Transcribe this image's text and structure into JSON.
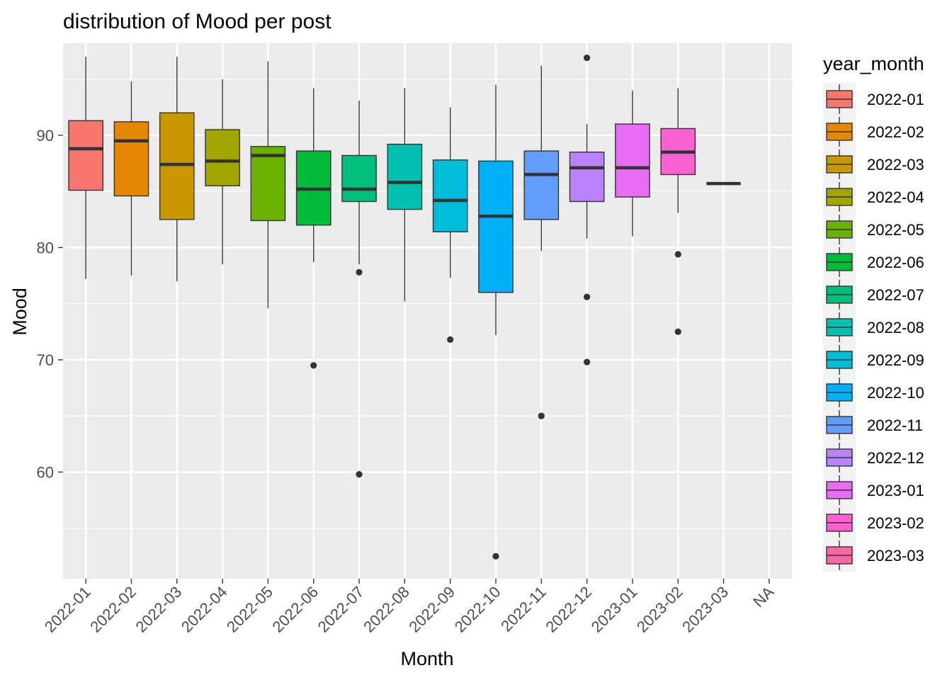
{
  "chart_data": {
    "type": "boxplot",
    "title": "distribution of Mood per post",
    "xlabel": "Month",
    "ylabel": "Mood",
    "ylim": [
      50.5,
      98.2
    ],
    "yticks": [
      60,
      70,
      80,
      90
    ],
    "grid": true,
    "legend": {
      "title": "year_month",
      "placement": "right",
      "entries": [
        "2022-01",
        "2022-02",
        "2022-03",
        "2022-04",
        "2022-05",
        "2022-06",
        "2022-07",
        "2022-08",
        "2022-09",
        "2022-10",
        "2022-11",
        "2022-12",
        "2023-01",
        "2023-02",
        "2023-03"
      ]
    },
    "categories": [
      "2022-01",
      "2022-02",
      "2022-03",
      "2022-04",
      "2022-05",
      "2022-06",
      "2022-07",
      "2022-08",
      "2022-09",
      "2022-10",
      "2022-11",
      "2022-12",
      "2023-01",
      "2023-02",
      "2023-03",
      "NA"
    ],
    "boxes": [
      {
        "category": "2022-01",
        "color": "#F8766D",
        "min": 77.2,
        "q1": 85.1,
        "median": 88.8,
        "q3": 91.3,
        "max": 97.0,
        "outliers": []
      },
      {
        "category": "2022-02",
        "color": "#E58700",
        "min": 77.5,
        "q1": 84.6,
        "median": 89.5,
        "q3": 91.2,
        "max": 94.8,
        "outliers": []
      },
      {
        "category": "2022-03",
        "color": "#C99800",
        "min": 77.0,
        "q1": 82.5,
        "median": 87.4,
        "q3": 92.0,
        "max": 97.0,
        "outliers": []
      },
      {
        "category": "2022-04",
        "color": "#A3A500",
        "min": 78.5,
        "q1": 85.5,
        "median": 87.7,
        "q3": 90.5,
        "max": 95.0,
        "outliers": []
      },
      {
        "category": "2022-05",
        "color": "#6BB100",
        "min": 74.6,
        "q1": 82.4,
        "median": 88.2,
        "q3": 89.0,
        "max": 96.6,
        "outliers": []
      },
      {
        "category": "2022-06",
        "color": "#00BA38",
        "min": 78.7,
        "q1": 82.0,
        "median": 85.2,
        "q3": 88.6,
        "max": 94.2,
        "outliers": [
          69.5
        ]
      },
      {
        "category": "2022-07",
        "color": "#00BF7D",
        "min": 78.5,
        "q1": 84.1,
        "median": 85.2,
        "q3": 88.2,
        "max": 93.1,
        "outliers": [
          77.8,
          59.8
        ]
      },
      {
        "category": "2022-08",
        "color": "#00C0AF",
        "min": 75.2,
        "q1": 83.4,
        "median": 85.8,
        "q3": 89.2,
        "max": 94.2,
        "outliers": []
      },
      {
        "category": "2022-09",
        "color": "#00BCD8",
        "min": 77.3,
        "q1": 81.4,
        "median": 84.2,
        "q3": 87.8,
        "max": 92.5,
        "outliers": [
          71.8
        ]
      },
      {
        "category": "2022-10",
        "color": "#00B0F6",
        "min": 72.2,
        "q1": 76.0,
        "median": 82.8,
        "q3": 87.7,
        "max": 94.5,
        "outliers": [
          52.5
        ]
      },
      {
        "category": "2022-11",
        "color": "#619CFF",
        "min": 79.7,
        "q1": 82.5,
        "median": 86.5,
        "q3": 88.6,
        "max": 96.2,
        "outliers": [
          65.0
        ]
      },
      {
        "category": "2022-12",
        "color": "#B983FF",
        "min": 80.8,
        "q1": 84.1,
        "median": 87.1,
        "q3": 88.5,
        "max": 91.0,
        "outliers": [
          96.9,
          75.6,
          69.8
        ]
      },
      {
        "category": "2023-01",
        "color": "#E76BF3",
        "min": 81.0,
        "q1": 84.5,
        "median": 87.1,
        "q3": 91.0,
        "max": 94.0,
        "outliers": []
      },
      {
        "category": "2023-02",
        "color": "#FD61D1",
        "min": 83.1,
        "q1": 86.5,
        "median": 88.5,
        "q3": 90.6,
        "max": 94.2,
        "outliers": [
          79.4,
          72.5
        ]
      },
      {
        "category": "2023-03",
        "color": "#FF67A4",
        "min": 85.7,
        "q1": 85.7,
        "median": 85.7,
        "q3": 85.7,
        "max": 85.7,
        "outliers": []
      }
    ]
  }
}
